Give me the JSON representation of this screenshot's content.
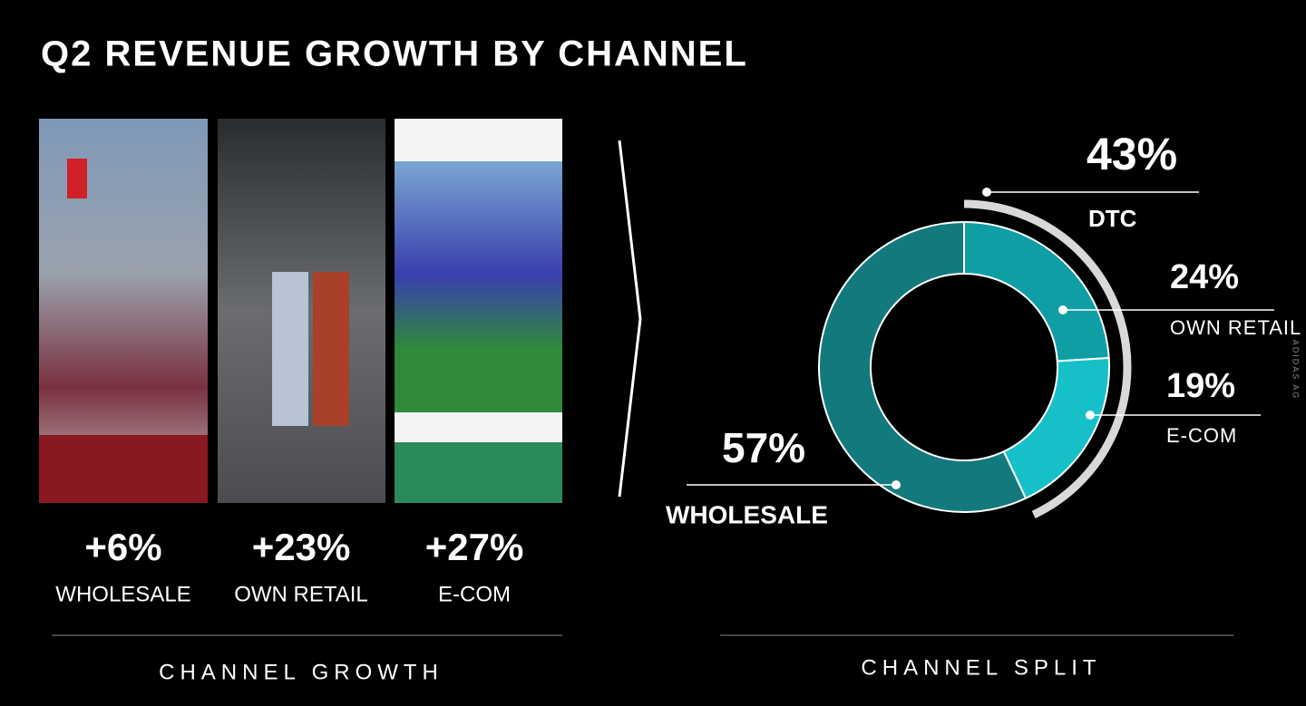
{
  "title": "Q2 REVENUE GROWTH BY CHANNEL",
  "growth": {
    "items": [
      {
        "label": "+6%",
        "name": "WHOLESALE"
      },
      {
        "label": "+23%",
        "name": "OWN RETAIL"
      },
      {
        "label": "+27%",
        "name": "E-COM"
      }
    ],
    "caption": "CHANNEL GROWTH"
  },
  "chart_data": {
    "type": "donut",
    "categories": [
      "WHOLESALE",
      "OWN RETAIL",
      "E-COM"
    ],
    "values": [
      57,
      24,
      19
    ],
    "value_labels": [
      "57%",
      "24%",
      "19%"
    ],
    "colors": [
      "#127a7c",
      "#0e9ea4",
      "#16c0c8"
    ],
    "group": {
      "name": "DTC",
      "value": 43,
      "value_label": "43%",
      "color": "#d9d9d9"
    },
    "caption": "CHANNEL SPLIT"
  },
  "credit": "ADIDAS AG"
}
